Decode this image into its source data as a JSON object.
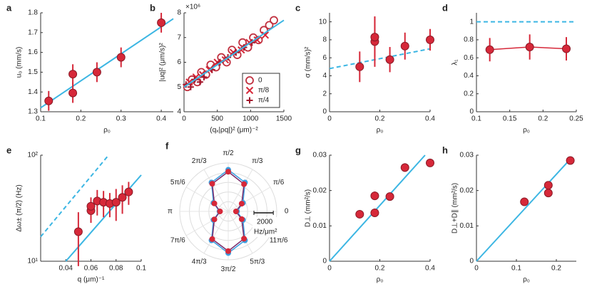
{
  "chart_data": [
    {
      "type": "scatter",
      "title": "a",
      "xlabel": "ρ₀",
      "ylabel": "u₀ (mm/s)",
      "xlim": [
        0.1,
        0.43
      ],
      "ylim": [
        1.3,
        1.8
      ],
      "xticks": [
        0.1,
        0.2,
        0.3,
        0.4
      ],
      "yticks": [
        1.3,
        1.4,
        1.5,
        1.6,
        1.7,
        1.8
      ],
      "series": [
        {
          "color": "#3cb6e3",
          "line": "solid",
          "x": [
            0.1,
            0.43
          ],
          "values": [
            1.32,
            1.77
          ]
        },
        {
          "color": "#d62839",
          "marker": "o",
          "x": [
            0.12,
            0.18,
            0.18,
            0.24,
            0.3,
            0.4
          ],
          "values": [
            1.355,
            1.395,
            1.49,
            1.5,
            1.575,
            1.75
          ],
          "errors": [
            0.05,
            0.05,
            0.05,
            0.05,
            0.05,
            0.05
          ]
        }
      ]
    },
    {
      "type": "scatter",
      "title": "b",
      "xlabel": "(qₓ|ρq|)² (μm)⁻²",
      "ylabel": "|uq|² (μm/s)²",
      "annotation": "×10⁶",
      "xlim": [
        0,
        1500
      ],
      "ylim": [
        4,
        8
      ],
      "xticks": [
        0,
        500,
        1000,
        1500
      ],
      "yticks": [
        4,
        5,
        6,
        7,
        8
      ],
      "legend": "lower right",
      "series": [
        {
          "name": "0",
          "color": "#c0303f",
          "marker": "circle-open",
          "x": [
            50,
            120,
            200,
            260,
            330,
            400,
            480,
            560,
            640,
            720,
            800,
            880,
            960,
            1040,
            1120,
            1200,
            1280,
            1350
          ],
          "values": [
            5.0,
            5.3,
            5.2,
            5.6,
            5.5,
            5.9,
            5.8,
            6.2,
            6.0,
            6.5,
            6.3,
            6.8,
            6.6,
            7.0,
            6.9,
            7.3,
            7.5,
            7.7
          ]
        },
        {
          "name": "π/8",
          "color": "#d62839",
          "marker": "x",
          "x": [
            80,
            180,
            280,
            380,
            500,
            620,
            740,
            860,
            980,
            1100,
            1220
          ],
          "values": [
            5.2,
            5.4,
            5.5,
            5.7,
            6.0,
            6.1,
            6.4,
            6.5,
            6.8,
            6.9,
            7.1
          ]
        },
        {
          "name": "π/4",
          "color": "#a3192e",
          "marker": "+",
          "x": [
            30,
            100,
            160,
            240,
            300,
            420,
            540,
            660,
            780,
            900,
            1020
          ],
          "values": [
            5.1,
            5.0,
            5.3,
            5.2,
            5.4,
            5.7,
            6.0,
            6.2,
            6.4,
            6.6,
            6.8
          ]
        },
        {
          "color": "#3cb6e3",
          "line": "solid",
          "x": [
            0,
            1500
          ],
          "values": [
            5.0,
            7.7
          ]
        }
      ]
    },
    {
      "type": "scatter",
      "title": "c",
      "xlabel": "ρ₀",
      "ylabel": "σ (mm/s)²",
      "xlim": [
        0,
        0.4
      ],
      "ylim": [
        0,
        11
      ],
      "xticks": [
        0,
        0.2,
        0.4
      ],
      "yticks": [
        0,
        2,
        4,
        6,
        8,
        10
      ],
      "series": [
        {
          "color": "#3cb6e3",
          "line": "dashed",
          "x": [
            0,
            0.4
          ],
          "values": [
            4.8,
            7.0
          ]
        },
        {
          "color": "#d62839",
          "marker": "o",
          "x": [
            0.12,
            0.18,
            0.18,
            0.24,
            0.3,
            0.4
          ],
          "values": [
            5.0,
            7.8,
            8.3,
            5.8,
            7.3,
            8.0
          ],
          "errors": [
            1.7,
            2.8,
            2.2,
            1.4,
            1.5,
            1.2
          ]
        }
      ]
    },
    {
      "type": "scatter",
      "title": "d",
      "xlabel": "ρ₀",
      "ylabel": "λ₁",
      "xlim": [
        0.1,
        0.25
      ],
      "ylim": [
        0,
        1.1
      ],
      "xticks": [
        0.1,
        0.15,
        0.2,
        0.25
      ],
      "yticks": [
        0,
        0.2,
        0.4,
        0.6,
        0.8,
        1
      ],
      "series": [
        {
          "color": "#3cb6e3",
          "line": "dashed",
          "x": [
            0.1,
            0.25
          ],
          "values": [
            1,
            1
          ]
        },
        {
          "color": "#d62839",
          "marker": "o",
          "line": "solid",
          "x": [
            0.12,
            0.18,
            0.235
          ],
          "values": [
            0.69,
            0.72,
            0.7
          ],
          "errors": [
            0.13,
            0.14,
            0.13
          ]
        }
      ]
    },
    {
      "type": "scatter",
      "title": "e",
      "xlabel": "q (μm)⁻¹",
      "ylabel": "Δω± (π/2) (Hz)",
      "log_y": true,
      "xlim": [
        0.02,
        0.1
      ],
      "ylim": [
        10,
        100
      ],
      "xticks": [
        0.04,
        0.06,
        0.08,
        0.1
      ],
      "yticks": [
        {
          "value": 10,
          "label": "10¹"
        },
        {
          "value": 100,
          "label": "10²"
        }
      ],
      "series": [
        {
          "color": "#3cb6e3",
          "line": "solid",
          "x": [
            0.04,
            0.1
          ],
          "values": [
            10,
            65
          ]
        },
        {
          "color": "#3cb6e3",
          "line": "dashed",
          "x": [
            0.02,
            0.074
          ],
          "values": [
            17,
            100
          ]
        },
        {
          "color": "#d62839",
          "marker": "o",
          "x": [
            0.05,
            0.06,
            0.06,
            0.065,
            0.07,
            0.075,
            0.08,
            0.085,
            0.09
          ],
          "values": [
            19,
            30,
            33,
            37,
            36,
            35,
            36,
            40,
            45
          ],
          "errors": [
            10,
            7,
            7,
            10,
            10,
            9,
            12,
            12,
            11
          ]
        }
      ]
    },
    {
      "type": "polar",
      "title": "f",
      "rlim": [
        0,
        5000
      ],
      "rgrid": [
        1000,
        2000,
        3000,
        4000,
        5000
      ],
      "angle_labels": [
        "0",
        "π/6",
        "π/3",
        "π/2",
        "2π/3",
        "5π/6",
        "π",
        "7π/6",
        "4π/3",
        "3π/2",
        "5π/3",
        "11π/6"
      ],
      "scale_bar": 2000,
      "scale_label": "2000",
      "scale_unit": "Hz/μm²",
      "series": [
        {
          "color": "#3b9ee0",
          "theta": [
            0,
            30,
            60,
            90,
            120,
            150,
            180,
            210,
            240,
            270,
            300,
            330
          ],
          "values": [
            900,
            1750,
            3450,
            4300,
            3450,
            1750,
            900,
            1750,
            3450,
            4300,
            3450,
            1750
          ]
        },
        {
          "color": "#d62839",
          "curve_color": "#7a2a6a",
          "theta": [
            0,
            30,
            60,
            90,
            120,
            150,
            180,
            210,
            240,
            270,
            300,
            330
          ],
          "values": [
            800,
            1600,
            3250,
            4100,
            3300,
            1650,
            850,
            1650,
            3300,
            4100,
            3250,
            1600
          ]
        }
      ]
    },
    {
      "type": "scatter",
      "title": "g",
      "xlabel": "ρ₀",
      "ylabel": "D⊥ (mm²/s)",
      "xlim": [
        0,
        0.4
      ],
      "ylim": [
        0,
        0.03
      ],
      "xticks": [
        0,
        0.2,
        0.4
      ],
      "yticks": [
        0,
        0.01,
        0.02,
        0.03
      ],
      "series": [
        {
          "color": "#3cb6e3",
          "line": "solid",
          "x": [
            0,
            0.38
          ],
          "values": [
            0,
            0.03
          ]
        },
        {
          "color": "#d62839",
          "marker": "o",
          "x": [
            0.12,
            0.18,
            0.18,
            0.24,
            0.3,
            0.4
          ],
          "values": [
            0.0133,
            0.0137,
            0.0185,
            0.0183,
            0.0265,
            0.0278
          ],
          "errors": [
            0.0008,
            0.0012,
            0.0012,
            0.0008,
            0.0012,
            0.0008
          ]
        }
      ]
    },
    {
      "type": "scatter",
      "title": "h",
      "xlabel": "ρ₀",
      "ylabel": "D⊥+D∥ (mm²/s)",
      "xlim": [
        0,
        0.25
      ],
      "ylim": [
        0,
        0.03
      ],
      "xticks": [
        0,
        0.1,
        0.2
      ],
      "yticks": [
        0,
        0.01,
        0.02,
        0.03
      ],
      "series": [
        {
          "color": "#3cb6e3",
          "line": "solid",
          "x": [
            0,
            0.24
          ],
          "values": [
            0,
            0.0295
          ]
        },
        {
          "color": "#d62839",
          "marker": "o",
          "x": [
            0.12,
            0.18,
            0.18,
            0.235
          ],
          "values": [
            0.0168,
            0.0193,
            0.0215,
            0.0285
          ],
          "errors": [
            0.0006,
            0.0006,
            0.0006,
            0.0006
          ]
        }
      ]
    }
  ]
}
